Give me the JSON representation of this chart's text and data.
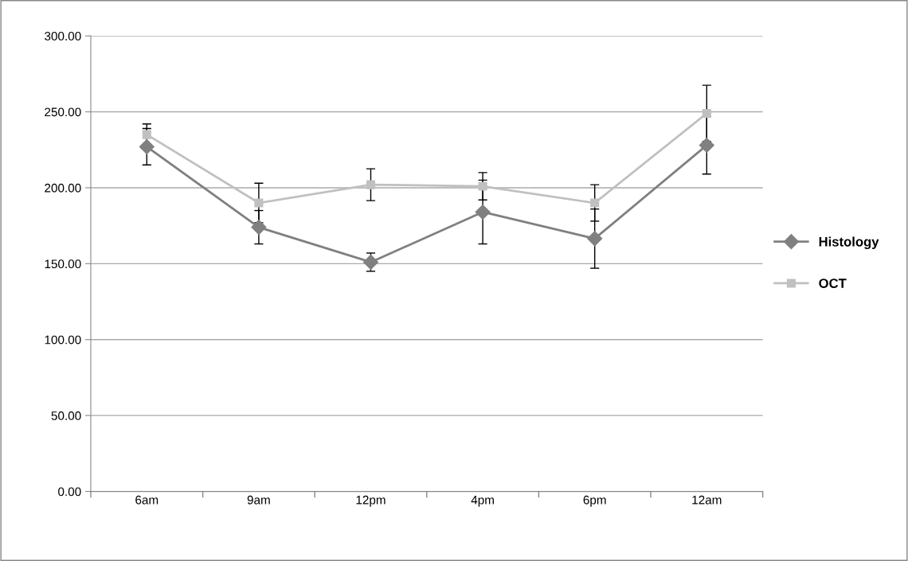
{
  "chart_data": {
    "type": "line",
    "categories": [
      "6am",
      "9am",
      "12pm",
      "4pm",
      "6pm",
      "12am"
    ],
    "series": [
      {
        "name": "Histology",
        "color": "#808080",
        "marker": "diamond",
        "values": [
          227,
          174,
          151,
          184,
          166.5,
          228
        ],
        "errors": [
          12,
          11,
          6,
          21,
          19.5,
          19
        ]
      },
      {
        "name": "OCT",
        "color": "#c0c0c0",
        "marker": "square",
        "values": [
          235,
          190,
          202,
          201,
          190,
          249
        ],
        "errors": [
          7,
          13,
          10.5,
          9,
          12,
          18.5
        ]
      }
    ],
    "ylim": [
      0,
      300
    ],
    "yticks": [
      {
        "value": 0,
        "label": "0.00"
      },
      {
        "value": 50,
        "label": "50.00"
      },
      {
        "value": 100,
        "label": "100.00"
      },
      {
        "value": 150,
        "label": "150.00"
      },
      {
        "value": 200,
        "label": "200.00"
      },
      {
        "value": 250,
        "label": "250.00"
      },
      {
        "value": 300,
        "label": "300.00"
      }
    ],
    "grid": "y",
    "legend": "right",
    "line_style": "solid"
  }
}
